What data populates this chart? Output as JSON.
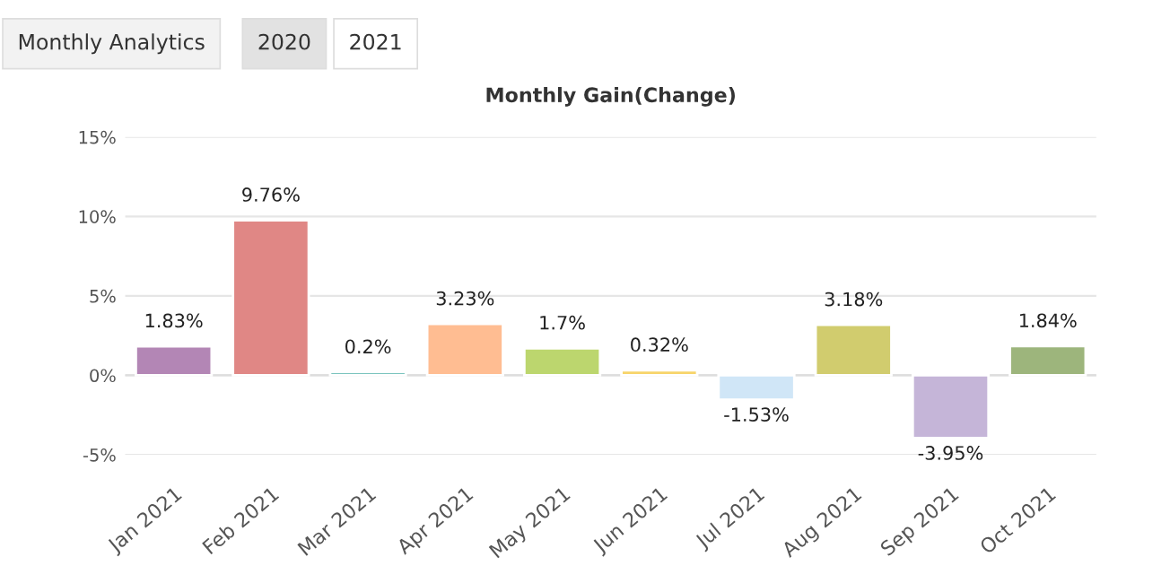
{
  "chart_data": {
    "type": "bar",
    "title": "Monthly Gain(Change)",
    "annotations": [
      "Monthly Analytics",
      "2020",
      "2021"
    ],
    "categories": [
      "Jan 2021",
      "Feb 2021",
      "Mar 2021",
      "Apr 2021",
      "May 2021",
      "Jun 2021",
      "Jul 2021",
      "Aug 2021",
      "Sep 2021",
      "Oct 2021"
    ],
    "values": [
      1.83,
      9.76,
      0.2,
      3.23,
      1.7,
      0.32,
      -1.53,
      3.18,
      -3.95,
      1.84
    ],
    "value_labels": [
      "1.83%",
      "9.76%",
      "0.2%",
      "3.23%",
      "1.7%",
      "0.32%",
      "-1.53%",
      "3.18%",
      "-3.95%",
      "1.84%"
    ],
    "colors": [
      "#b386b5",
      "#e08785",
      "#4fb0a8",
      "#ffbd92",
      "#bcd66e",
      "#f7d46a",
      "#d0e6f7",
      "#d1cc6e",
      "#c5b5d8",
      "#9db57c"
    ],
    "ylim": [
      -5,
      15
    ],
    "yticks": [
      {
        "value": -5,
        "label": "-5%"
      },
      {
        "value": 0,
        "label": "0%"
      },
      {
        "value": 5,
        "label": "5%"
      },
      {
        "value": 10,
        "label": "10%"
      },
      {
        "value": 15,
        "label": "15%"
      }
    ],
    "grid": "y",
    "legend": false
  }
}
